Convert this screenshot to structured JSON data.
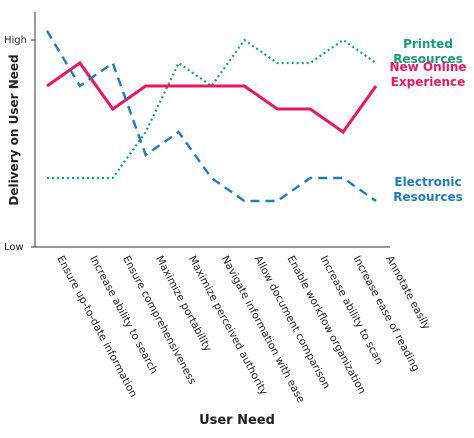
{
  "chart_data": {
    "type": "line",
    "x_label": "User Need",
    "y_label": "Delivery on User Need",
    "categories": [
      "Ensure up-to-date information",
      "Increase ability to search",
      "Ensure comprehensiveness",
      "Maximize portability",
      "Maximize perceived authority",
      "Navigate information with ease",
      "Allow document comparison",
      "Enable workflow organization",
      "Increase ability to scan",
      "Increase ease of reading",
      "Annotate easily"
    ],
    "series": [
      {
        "name": "Printed Resources",
        "color": "#1a9c7a",
        "dash": "dotted",
        "values": [
          3,
          3,
          3,
          5,
          8,
          7,
          9,
          8,
          8,
          9,
          8
        ]
      },
      {
        "name": "New Online Experience",
        "color": "#e5195e",
        "dash": "solid",
        "values": [
          7,
          8,
          6,
          7,
          7,
          7,
          7,
          6,
          6,
          5,
          7
        ]
      },
      {
        "name": "Electronic Resources",
        "color": "#1f7bbf",
        "dash": "dashed",
        "values": [
          9.4,
          7,
          8,
          4,
          5,
          3,
          2,
          2,
          3,
          3,
          2
        ]
      }
    ],
    "ylim": [
      0,
      10
    ],
    "yticks": [
      {
        "value": 0,
        "label": "Low"
      },
      {
        "value": 9,
        "label": "High"
      }
    ]
  }
}
